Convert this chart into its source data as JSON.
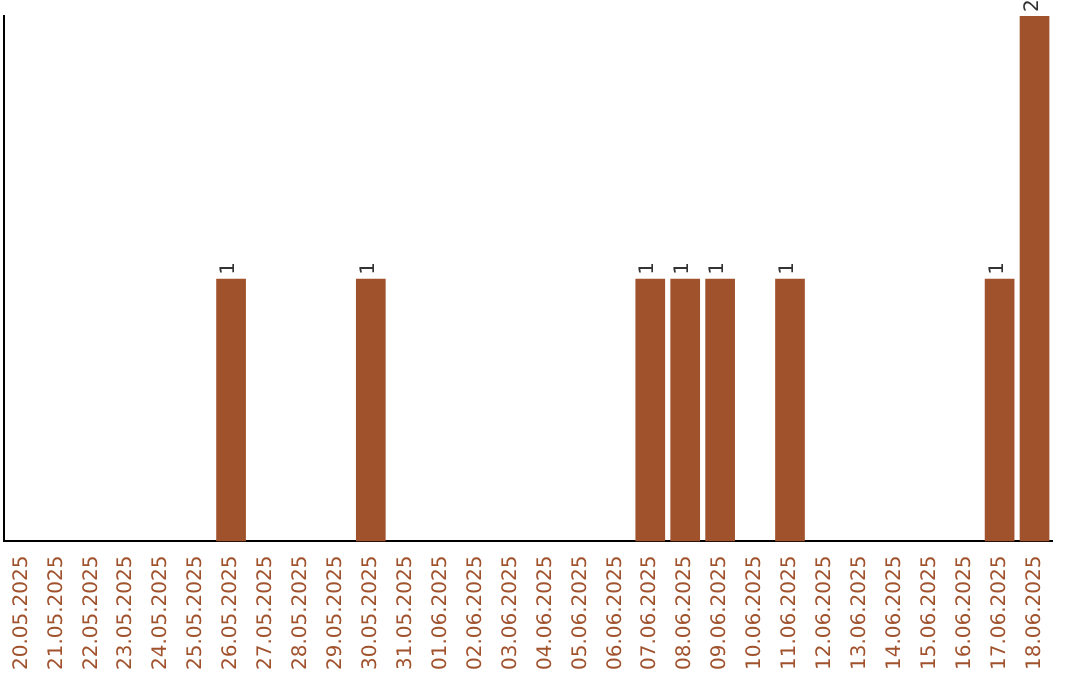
{
  "chart_data": {
    "type": "bar",
    "categories": [
      "20.05.2025",
      "21.05.2025",
      "22.05.2025",
      "23.05.2025",
      "24.05.2025",
      "25.05.2025",
      "26.05.2025",
      "27.05.2025",
      "28.05.2025",
      "29.05.2025",
      "30.05.2025",
      "31.05.2025",
      "01.06.2025",
      "02.06.2025",
      "03.06.2025",
      "04.06.2025",
      "05.06.2025",
      "06.06.2025",
      "07.06.2025",
      "08.06.2025",
      "09.06.2025",
      "10.06.2025",
      "11.06.2025",
      "12.06.2025",
      "13.06.2025",
      "14.06.2025",
      "15.06.2025",
      "16.06.2025",
      "17.06.2025",
      "18.06.2025"
    ],
    "values": [
      0,
      0,
      0,
      0,
      0,
      0,
      1,
      0,
      0,
      0,
      1,
      0,
      0,
      0,
      0,
      0,
      0,
      0,
      1,
      1,
      1,
      0,
      1,
      0,
      0,
      0,
      0,
      0,
      1,
      2
    ],
    "value_labels": [
      null,
      null,
      null,
      null,
      null,
      null,
      "1",
      null,
      null,
      null,
      "1",
      null,
      null,
      null,
      null,
      null,
      null,
      null,
      "1",
      "1",
      "1",
      null,
      "1",
      null,
      null,
      null,
      null,
      null,
      "1",
      "2"
    ],
    "color": "#a0522d",
    "grid": false,
    "legend": false,
    "tick_labels": "x"
  }
}
